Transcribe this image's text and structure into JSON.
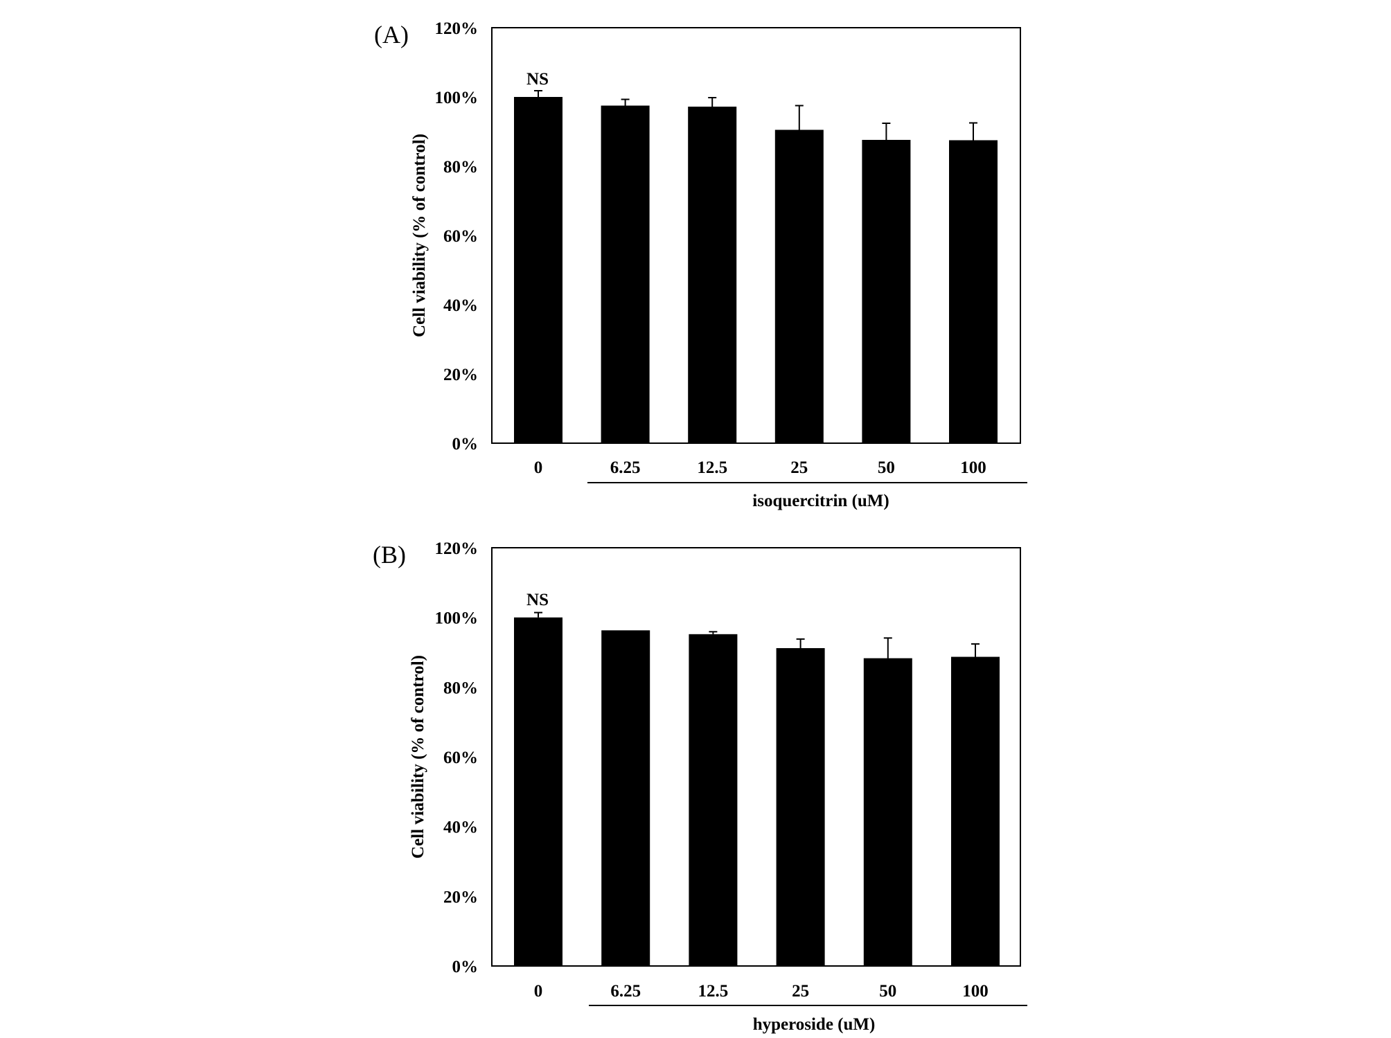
{
  "chart_data": [
    {
      "panel_label": "(A)",
      "type": "bar",
      "categories": [
        "0",
        "6.25",
        "12.5",
        "25",
        "50",
        "100"
      ],
      "values": [
        100,
        97.5,
        97.2,
        90.5,
        87.6,
        87.5
      ],
      "errors": [
        1.8,
        1.8,
        2.6,
        7.0,
        4.8,
        5.0
      ],
      "ylabel": "Cell viability  (% of control)",
      "xlabel": "isoquercitrin  (uM)",
      "yticks": [
        "0%",
        "20%",
        "40%",
        "60%",
        "80%",
        "100%",
        "120%"
      ],
      "ylim": [
        0,
        120
      ],
      "annotation": "NS",
      "bar_color": "#000000"
    },
    {
      "panel_label": "(B)",
      "type": "bar",
      "categories": [
        "0",
        "6.25",
        "12.5",
        "25",
        "50",
        "100"
      ],
      "values": [
        100,
        96.3,
        95.2,
        91.2,
        88.3,
        88.7
      ],
      "errors": [
        1.4,
        0.0,
        0.7,
        2.6,
        5.8,
        3.7
      ],
      "ylabel": "Cell viability  (% of control)",
      "xlabel": "hyperoside (uM)",
      "yticks": [
        "0%",
        "20%",
        "40%",
        "60%",
        "80%",
        "100%",
        "120%"
      ],
      "ylim": [
        0,
        120
      ],
      "annotation": "NS",
      "bar_color": "#000000"
    }
  ]
}
